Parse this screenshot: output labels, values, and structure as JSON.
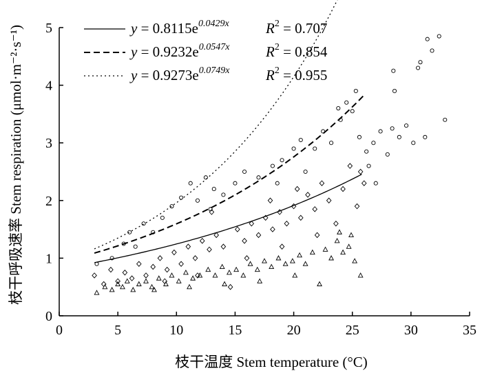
{
  "chart_data": {
    "type": "scatter",
    "xlabel": "枝干温度 Stem temperature (°C)",
    "ylabel": "枝干呼吸速率 Stem respiration (μmol·m⁻²·s⁻¹)",
    "xlim": [
      0,
      35
    ],
    "ylim": [
      0,
      5
    ],
    "x_ticks": [
      "0",
      "5",
      "10",
      "15",
      "20",
      "25",
      "30",
      "35"
    ],
    "y_ticks": [
      "0",
      "1",
      "2",
      "3",
      "4",
      "5"
    ],
    "grid": false,
    "legend_position": "top-left",
    "series": [
      {
        "marker": "triangle",
        "line_style": "solid",
        "fit": {
          "a": 0.8115,
          "b": 0.0429,
          "x_range": [
            3,
            25.8
          ]
        },
        "legend_equation_prefix": "y = 0.8115e",
        "legend_exponent": "0.0429x",
        "legend_r2_label": "R",
        "legend_r2_value": " = 0.707",
        "points": [
          [
            3.2,
            0.4
          ],
          [
            3.9,
            0.5
          ],
          [
            4.5,
            0.45
          ],
          [
            5.0,
            0.55
          ],
          [
            5.4,
            0.5
          ],
          [
            5.8,
            0.6
          ],
          [
            6.3,
            0.45
          ],
          [
            6.8,
            0.55
          ],
          [
            7.4,
            0.6
          ],
          [
            7.9,
            0.5
          ],
          [
            8.5,
            0.65
          ],
          [
            9.1,
            0.55
          ],
          [
            9.6,
            0.7
          ],
          [
            10.2,
            0.6
          ],
          [
            10.8,
            0.75
          ],
          [
            11.4,
            0.65
          ],
          [
            12.0,
            0.7
          ],
          [
            12.7,
            0.8
          ],
          [
            13.3,
            0.7
          ],
          [
            13.9,
            0.85
          ],
          [
            14.5,
            0.75
          ],
          [
            15.1,
            0.8
          ],
          [
            15.7,
            0.7
          ],
          [
            16.3,
            0.9
          ],
          [
            16.9,
            0.8
          ],
          [
            17.5,
            0.95
          ],
          [
            18.1,
            0.85
          ],
          [
            18.7,
            1.0
          ],
          [
            19.3,
            0.9
          ],
          [
            19.9,
            0.95
          ],
          [
            20.5,
            1.05
          ],
          [
            21.0,
            0.9
          ],
          [
            21.6,
            1.1
          ],
          [
            22.2,
            0.55
          ],
          [
            22.7,
            1.15
          ],
          [
            23.2,
            1.0
          ],
          [
            23.7,
            1.3
          ],
          [
            24.2,
            1.1
          ],
          [
            24.7,
            1.2
          ],
          [
            25.2,
            0.95
          ],
          [
            25.7,
            0.7
          ],
          [
            24.9,
            1.4
          ],
          [
            23.9,
            1.45
          ],
          [
            8.1,
            0.45
          ],
          [
            11.1,
            0.5
          ],
          [
            14.1,
            0.55
          ],
          [
            17.1,
            0.6
          ],
          [
            20.1,
            0.7
          ]
        ]
      },
      {
        "marker": "diamond",
        "line_style": "dashed",
        "fit": {
          "a": 0.9232,
          "b": 0.0547,
          "x_range": [
            3,
            26
          ]
        },
        "legend_equation_prefix": "y = 0.9232e",
        "legend_exponent": "0.0547x",
        "legend_r2_label": "R",
        "legend_r2_value": " = 0.854",
        "points": [
          [
            3.0,
            0.7
          ],
          [
            3.8,
            0.55
          ],
          [
            4.4,
            0.8
          ],
          [
            5.0,
            0.6
          ],
          [
            5.6,
            0.75
          ],
          [
            6.2,
            0.65
          ],
          [
            6.8,
            0.9
          ],
          [
            7.4,
            0.7
          ],
          [
            8.0,
            0.85
          ],
          [
            8.6,
            1.0
          ],
          [
            9.2,
            0.8
          ],
          [
            9.8,
            1.1
          ],
          [
            10.4,
            0.9
          ],
          [
            11.0,
            1.2
          ],
          [
            11.6,
            1.0
          ],
          [
            12.2,
            1.3
          ],
          [
            12.8,
            1.15
          ],
          [
            13.4,
            1.4
          ],
          [
            14.0,
            1.2
          ],
          [
            14.6,
            0.5
          ],
          [
            15.2,
            1.5
          ],
          [
            15.8,
            1.3
          ],
          [
            16.4,
            1.6
          ],
          [
            17.0,
            1.4
          ],
          [
            17.6,
            1.7
          ],
          [
            18.2,
            1.5
          ],
          [
            18.8,
            1.8
          ],
          [
            19.4,
            1.6
          ],
          [
            20.0,
            1.9
          ],
          [
            20.6,
            1.7
          ],
          [
            21.2,
            2.1
          ],
          [
            21.8,
            1.85
          ],
          [
            22.4,
            2.3
          ],
          [
            23.0,
            2.0
          ],
          [
            23.6,
            1.6
          ],
          [
            24.2,
            2.2
          ],
          [
            24.8,
            2.6
          ],
          [
            25.4,
            1.9
          ],
          [
            26.0,
            2.3
          ],
          [
            25.7,
            2.5
          ],
          [
            13.0,
            1.8
          ],
          [
            16.0,
            1.0
          ],
          [
            19.0,
            1.2
          ],
          [
            22.0,
            1.4
          ],
          [
            9.0,
            0.6
          ],
          [
            11.8,
            0.7
          ],
          [
            18.0,
            2.0
          ],
          [
            20.3,
            2.2
          ]
        ]
      },
      {
        "marker": "circle",
        "line_style": "dotted",
        "fit": {
          "a": 0.9273,
          "b": 0.0749,
          "x_range": [
            3,
            33
          ]
        },
        "legend_equation_prefix": "y = 0.9273e",
        "legend_exponent": "0.0749x",
        "legend_r2_label": "R",
        "legend_r2_value": " = 0.955",
        "points": [
          [
            3.2,
            0.9
          ],
          [
            4.5,
            1.0
          ],
          [
            5.5,
            1.25
          ],
          [
            6.0,
            1.45
          ],
          [
            6.5,
            1.2
          ],
          [
            7.2,
            1.6
          ],
          [
            8.0,
            1.45
          ],
          [
            8.8,
            1.7
          ],
          [
            9.6,
            1.9
          ],
          [
            10.4,
            2.05
          ],
          [
            11.2,
            2.3
          ],
          [
            11.8,
            2.0
          ],
          [
            12.5,
            2.4
          ],
          [
            13.2,
            2.2
          ],
          [
            14.0,
            2.1
          ],
          [
            15.0,
            2.3
          ],
          [
            15.8,
            2.5
          ],
          [
            17.0,
            2.4
          ],
          [
            18.2,
            2.6
          ],
          [
            19.0,
            2.7
          ],
          [
            20.0,
            2.9
          ],
          [
            20.6,
            3.05
          ],
          [
            21.8,
            2.9
          ],
          [
            22.5,
            3.2
          ],
          [
            23.2,
            3.0
          ],
          [
            24.0,
            3.4
          ],
          [
            24.5,
            3.7
          ],
          [
            25.0,
            3.55
          ],
          [
            25.6,
            3.1
          ],
          [
            26.2,
            2.85
          ],
          [
            26.8,
            3.0
          ],
          [
            27.4,
            3.2
          ],
          [
            28.0,
            2.8
          ],
          [
            28.4,
            3.25
          ],
          [
            28.6,
            3.9
          ],
          [
            29.0,
            3.1
          ],
          [
            29.6,
            3.3
          ],
          [
            30.2,
            3.0
          ],
          [
            30.6,
            4.3
          ],
          [
            31.2,
            3.1
          ],
          [
            31.8,
            4.6
          ],
          [
            32.4,
            4.85
          ],
          [
            32.9,
            3.4
          ],
          [
            25.3,
            3.9
          ],
          [
            28.5,
            4.25
          ],
          [
            31.4,
            4.8
          ],
          [
            30.8,
            4.4
          ],
          [
            23.8,
            3.6
          ],
          [
            27.0,
            2.3
          ],
          [
            26.4,
            2.6
          ],
          [
            12.9,
            1.85
          ],
          [
            18.6,
            2.3
          ],
          [
            21.0,
            2.5
          ]
        ]
      }
    ]
  }
}
